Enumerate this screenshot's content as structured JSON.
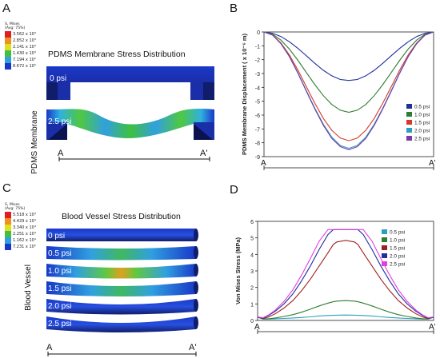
{
  "panels": {
    "A": {
      "letter": "A",
      "title": "PDMS Membrane Stress Distribution",
      "side_label": "PDMS Membrane",
      "legend_header": [
        "S, Mises",
        "(Avg: 75%)"
      ],
      "legend_values": [
        "3.562 x 10³",
        "2.852 x 10³",
        "2.141 x 10³",
        "1.430 x 10³",
        "7.194 x 10²",
        "8.672 x 10⁰"
      ],
      "legend_colors": [
        "#e02020",
        "#f09020",
        "#e0e020",
        "#40c040",
        "#30a0e0",
        "#1838c8"
      ],
      "state_labels": [
        "0 psi",
        "2.5 psi"
      ],
      "end_labels": [
        "A",
        "A'"
      ]
    },
    "B": {
      "letter": "B"
    },
    "C": {
      "letter": "C",
      "title": "Blood Vessel Stress Distribution",
      "side_label": "Blood Vessel",
      "legend_header": [
        "S, Mises",
        "(Avg: 75%)"
      ],
      "legend_values": [
        "5.518 x 10⁴",
        "4.429 x 10⁴",
        "3.340 x 10⁴",
        "2.251 x 10⁴",
        "1.162 x 10⁴",
        "7.231 x 10²"
      ],
      "legend_colors": [
        "#e02020",
        "#f09020",
        "#e0e020",
        "#40c040",
        "#30a0e0",
        "#1838c8"
      ],
      "state_labels": [
        "0 psi",
        "0.5 psi",
        "1.0 psi",
        "1.5 psi",
        "2.0 psi",
        "2.5 psi"
      ],
      "end_labels": [
        "A",
        "A'"
      ]
    },
    "D": {
      "letter": "D"
    }
  },
  "chart_data": [
    {
      "panel": "B",
      "type": "line",
      "xlabel": "",
      "ylabel": "PDMS Membrane Displacement ( x 10⁻⁶ m)",
      "x_end_labels": [
        "A",
        "A'"
      ],
      "x": [
        0,
        0.05,
        0.1,
        0.15,
        0.2,
        0.25,
        0.3,
        0.35,
        0.4,
        0.45,
        0.5,
        0.55,
        0.6,
        0.65,
        0.7,
        0.75,
        0.8,
        0.85,
        0.9,
        0.95,
        1
      ],
      "ylim": [
        -9,
        0
      ],
      "yticks": [
        0,
        -1,
        -2,
        -3,
        -4,
        -5,
        -6,
        -7,
        -8,
        -9
      ],
      "grid": false,
      "legend_position": "bottom-right",
      "series": [
        {
          "name": "0.5 psi",
          "color": "#1f2f9c",
          "values": [
            0,
            -0.09,
            -0.33,
            -0.71,
            -1.19,
            -1.72,
            -2.27,
            -2.77,
            -3.17,
            -3.43,
            -3.5,
            -3.43,
            -3.17,
            -2.77,
            -2.27,
            -1.72,
            -1.19,
            -0.71,
            -0.33,
            -0.09,
            0
          ]
        },
        {
          "name": "1.0 psi",
          "color": "#2f7d2f",
          "values": [
            0,
            -0.16,
            -0.59,
            -1.24,
            -2.05,
            -2.93,
            -3.81,
            -4.6,
            -5.24,
            -5.65,
            -5.8,
            -5.65,
            -5.24,
            -4.6,
            -3.81,
            -2.93,
            -2.05,
            -1.24,
            -0.59,
            -0.16,
            0
          ]
        },
        {
          "name": "1.5 psi",
          "color": "#d43a2a",
          "values": [
            0,
            -0.21,
            -0.79,
            -1.66,
            -2.76,
            -3.96,
            -5.15,
            -6.24,
            -7.1,
            -7.66,
            -7.85,
            -7.66,
            -7.1,
            -6.24,
            -5.15,
            -3.96,
            -2.76,
            -1.66,
            -0.79,
            -0.21,
            0
          ]
        },
        {
          "name": "2.0 psi",
          "color": "#2aa0c0",
          "values": [
            0,
            -0.22,
            -0.84,
            -1.77,
            -2.95,
            -4.24,
            -5.51,
            -6.66,
            -7.6,
            -8.19,
            -8.4,
            -8.19,
            -7.6,
            -6.66,
            -5.51,
            -4.24,
            -2.95,
            -1.77,
            -0.84,
            -0.22,
            0
          ]
        },
        {
          "name": "2.5 psi",
          "color": "#7a3aa8",
          "values": [
            0,
            -0.22,
            -0.85,
            -1.79,
            -2.98,
            -4.29,
            -5.57,
            -6.74,
            -7.69,
            -8.28,
            -8.5,
            -8.28,
            -7.69,
            -6.74,
            -5.57,
            -4.29,
            -2.98,
            -1.79,
            -0.85,
            -0.22,
            0
          ]
        }
      ]
    },
    {
      "panel": "D",
      "type": "line",
      "xlabel": "",
      "ylabel": "Von Mises Stress (MPa)",
      "x_end_labels": [
        "A",
        "A'"
      ],
      "x": [
        0,
        0.03,
        0.06,
        0.1,
        0.15,
        0.2,
        0.25,
        0.3,
        0.35,
        0.4,
        0.43,
        0.45,
        0.5,
        0.55,
        0.57,
        0.6,
        0.65,
        0.7,
        0.75,
        0.8,
        0.85,
        0.9,
        0.94,
        0.97,
        1
      ],
      "ylim": [
        0,
        6
      ],
      "yticks": [
        0,
        1,
        2,
        3,
        4,
        5,
        6
      ],
      "grid": false,
      "legend_position": "top-left",
      "series": [
        {
          "name": "0.5 psi",
          "color": "#2aa0c0",
          "values": [
            0.2,
            0.08,
            0.08,
            0.1,
            0.12,
            0.15,
            0.18,
            0.22,
            0.27,
            0.3,
            0.31,
            0.32,
            0.33,
            0.32,
            0.31,
            0.3,
            0.27,
            0.22,
            0.18,
            0.15,
            0.12,
            0.1,
            0.08,
            0.08,
            0.2
          ]
        },
        {
          "name": "1.0 psi",
          "color": "#2f7d2f",
          "values": [
            0.2,
            0.1,
            0.1,
            0.15,
            0.24,
            0.35,
            0.5,
            0.68,
            0.88,
            1.05,
            1.13,
            1.17,
            1.2,
            1.17,
            1.13,
            1.05,
            0.88,
            0.68,
            0.5,
            0.35,
            0.24,
            0.15,
            0.1,
            0.1,
            0.2
          ]
        },
        {
          "name": "1.5 psi",
          "color": "#a02020",
          "values": [
            0.2,
            0.12,
            0.2,
            0.4,
            0.75,
            1.2,
            1.8,
            2.5,
            3.3,
            4.1,
            4.6,
            4.75,
            4.85,
            4.75,
            4.6,
            4.1,
            3.3,
            2.5,
            1.8,
            1.2,
            0.75,
            0.4,
            0.2,
            0.12,
            0.2
          ]
        },
        {
          "name": "2.0 psi",
          "color": "#1f2f9c",
          "values": [
            0.2,
            0.14,
            0.28,
            0.55,
            1.0,
            1.6,
            2.4,
            3.3,
            4.3,
            5.2,
            5.5,
            5.5,
            5.5,
            5.5,
            5.5,
            5.2,
            4.3,
            3.3,
            2.4,
            1.6,
            1.0,
            0.55,
            0.28,
            0.14,
            0.2
          ]
        },
        {
          "name": "2.5 psi",
          "color": "#e040e0",
          "values": [
            0.22,
            0.16,
            0.32,
            0.62,
            1.15,
            1.85,
            2.75,
            3.75,
            4.8,
            5.5,
            5.5,
            5.5,
            5.5,
            5.5,
            5.5,
            5.5,
            4.8,
            3.75,
            2.75,
            1.85,
            1.15,
            0.62,
            0.32,
            0.16,
            0.22
          ]
        }
      ]
    }
  ]
}
